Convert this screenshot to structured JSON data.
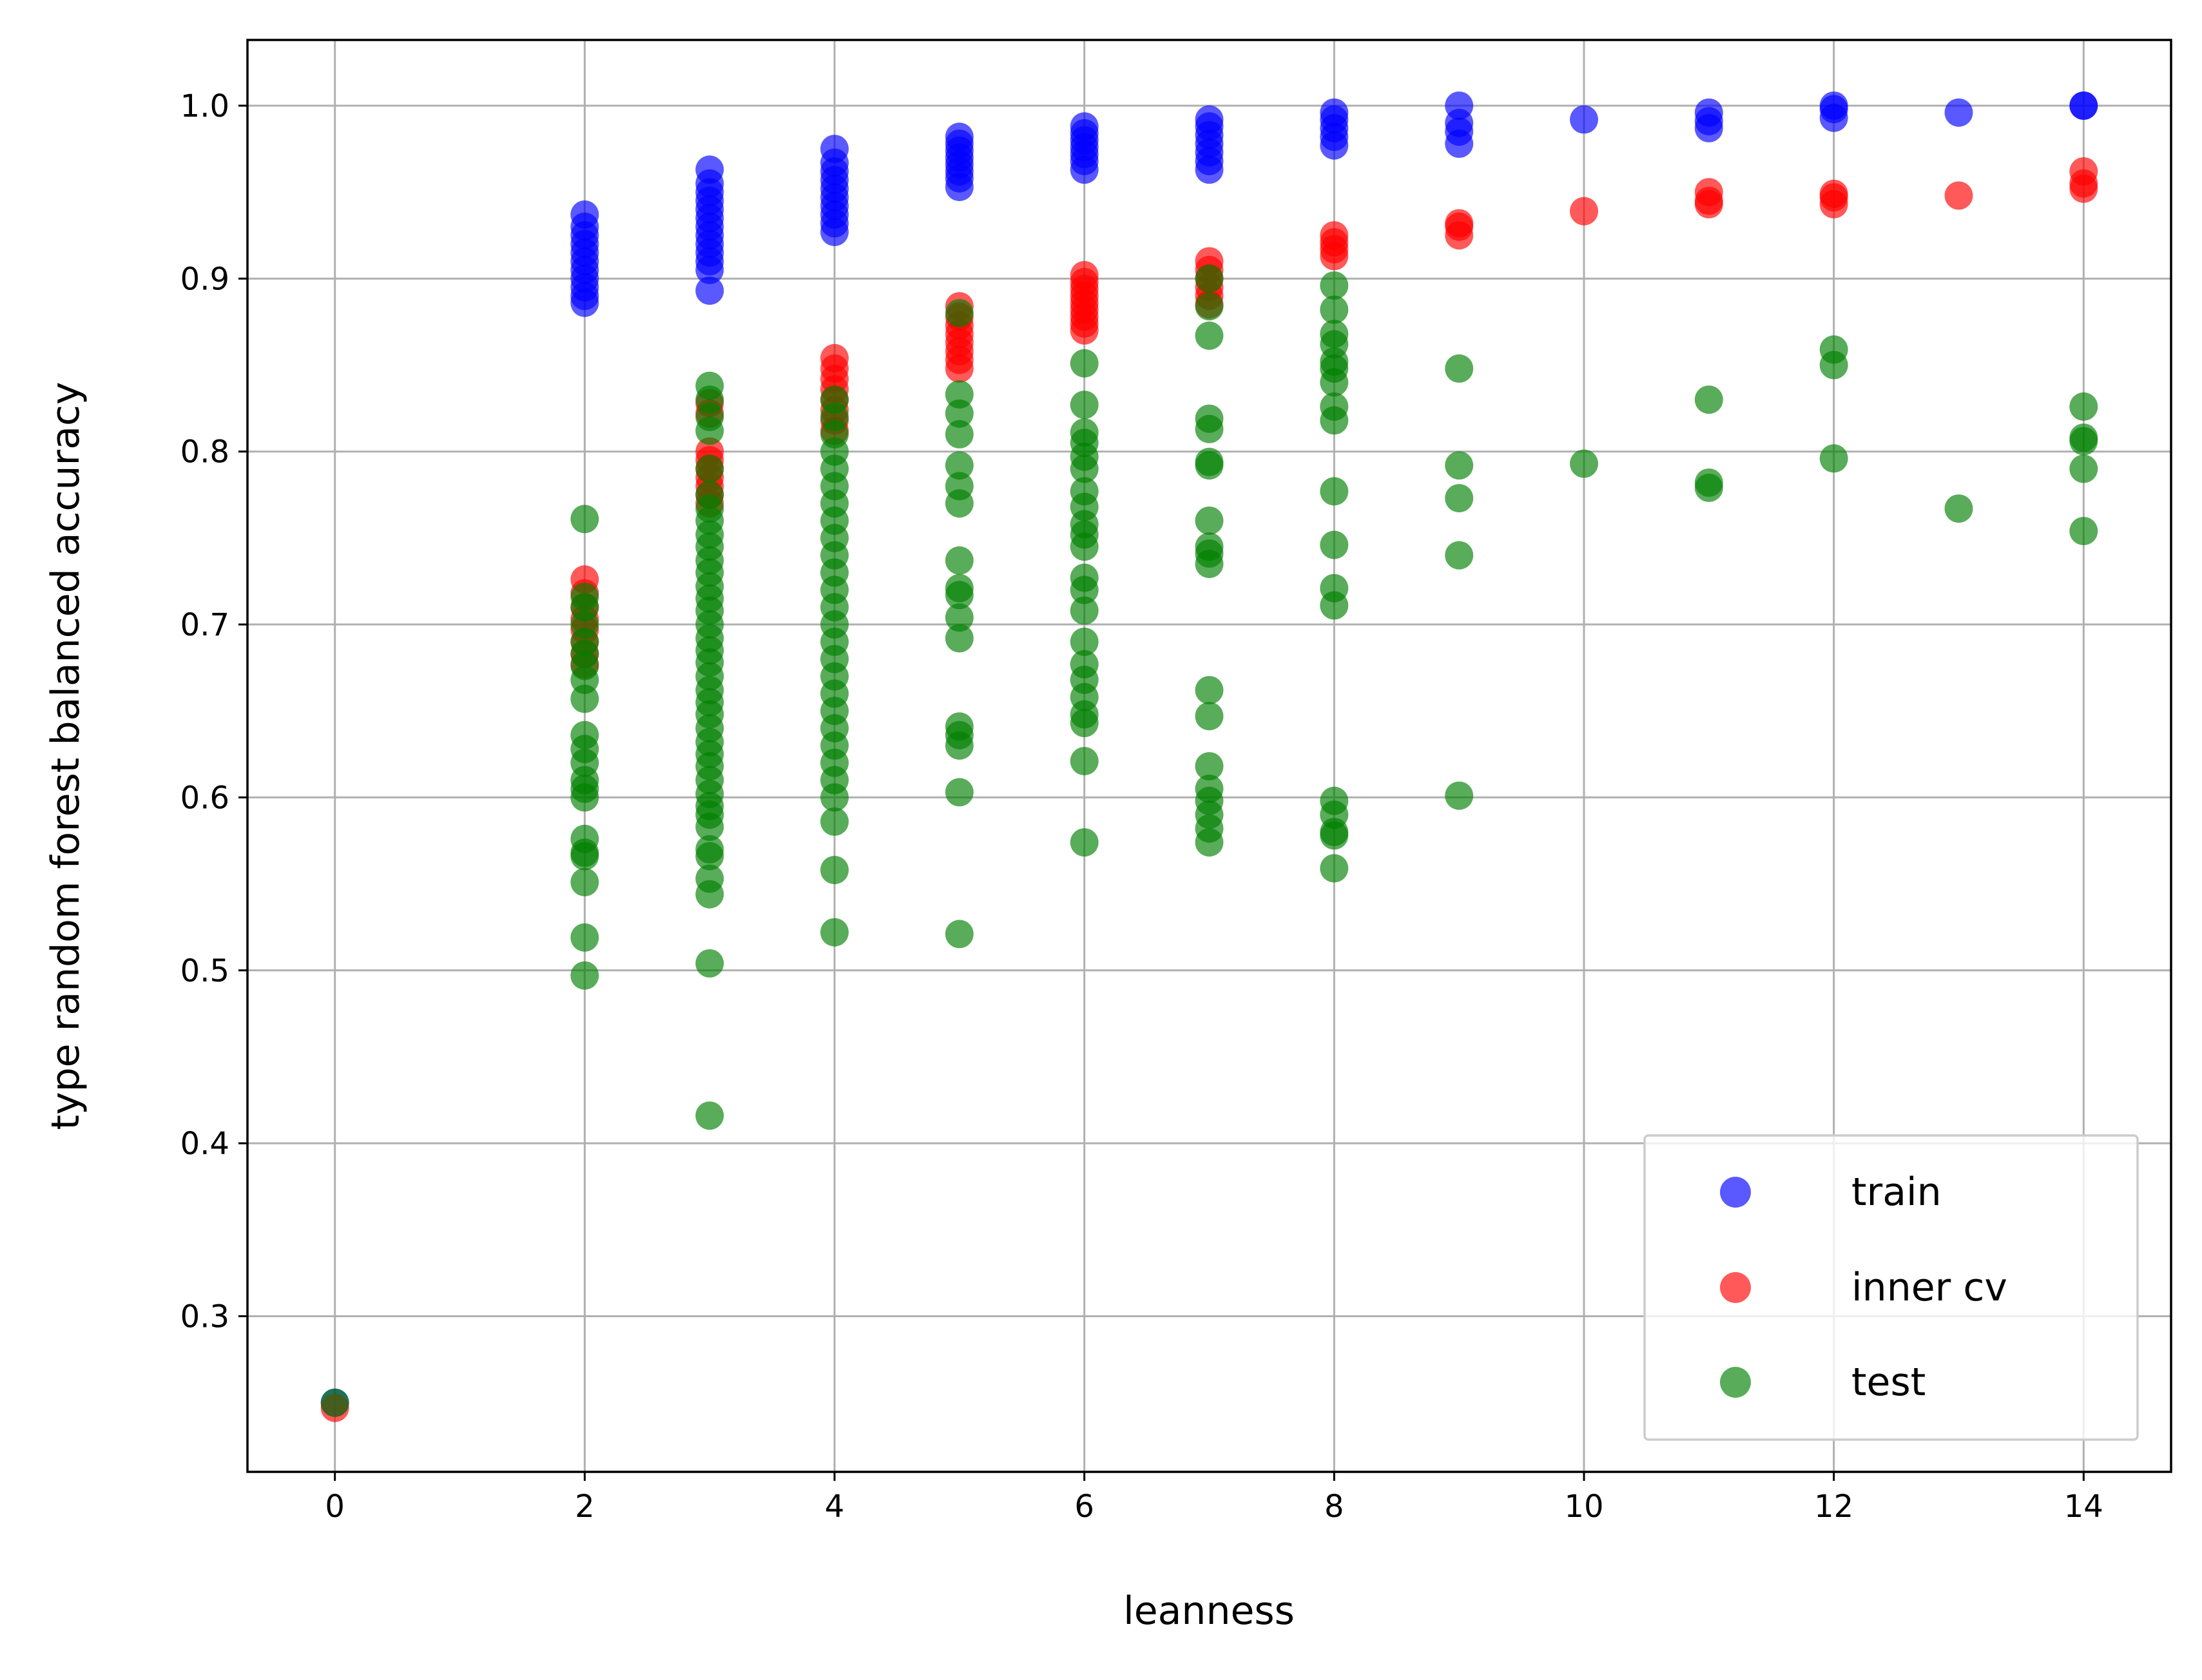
{
  "chart_data": {
    "type": "scatter",
    "xlabel": "leanness",
    "ylabel": "type random forest balanced accuracy",
    "xlim": [
      -0.7,
      14.7
    ],
    "ylim": [
      0.21,
      1.038
    ],
    "xticks": [
      0,
      2,
      4,
      6,
      8,
      10,
      12,
      14
    ],
    "xtick_labels": [
      "0",
      "2",
      "4",
      "6",
      "8",
      "10",
      "12",
      "14"
    ],
    "yticks": [
      0.3,
      0.4,
      0.5,
      0.6,
      0.7,
      0.8,
      0.9,
      1.0
    ],
    "ytick_labels": [
      "0.3",
      "0.4",
      "0.5",
      "0.6",
      "0.7",
      "0.8",
      "0.9",
      "1.0"
    ],
    "grid": true,
    "legend_position": "bottom-right",
    "series": [
      {
        "name": "train",
        "color": "#0000ff",
        "alpha": 0.65,
        "points": [
          [
            0,
            0.25
          ],
          [
            2,
            0.886
          ],
          [
            2,
            0.89
          ],
          [
            2,
            0.895
          ],
          [
            2,
            0.9
          ],
          [
            2,
            0.905
          ],
          [
            2,
            0.91
          ],
          [
            2,
            0.915
          ],
          [
            2,
            0.92
          ],
          [
            2,
            0.925
          ],
          [
            2,
            0.93
          ],
          [
            2,
            0.937
          ],
          [
            3,
            0.893
          ],
          [
            3,
            0.905
          ],
          [
            3,
            0.91
          ],
          [
            3,
            0.915
          ],
          [
            3,
            0.92
          ],
          [
            3,
            0.925
          ],
          [
            3,
            0.93
          ],
          [
            3,
            0.935
          ],
          [
            3,
            0.94
          ],
          [
            3,
            0.945
          ],
          [
            3,
            0.95
          ],
          [
            3,
            0.955
          ],
          [
            3,
            0.963
          ],
          [
            4,
            0.927
          ],
          [
            4,
            0.932
          ],
          [
            4,
            0.937
          ],
          [
            4,
            0.942
          ],
          [
            4,
            0.947
          ],
          [
            4,
            0.952
          ],
          [
            4,
            0.957
          ],
          [
            4,
            0.962
          ],
          [
            4,
            0.967
          ],
          [
            4,
            0.975
          ],
          [
            5,
            0.953
          ],
          [
            5,
            0.958
          ],
          [
            5,
            0.962
          ],
          [
            5,
            0.966
          ],
          [
            5,
            0.97
          ],
          [
            5,
            0.974
          ],
          [
            5,
            0.978
          ],
          [
            5,
            0.982
          ],
          [
            6,
            0.963
          ],
          [
            6,
            0.968
          ],
          [
            6,
            0.972
          ],
          [
            6,
            0.976
          ],
          [
            6,
            0.98
          ],
          [
            6,
            0.984
          ],
          [
            6,
            0.988
          ],
          [
            7,
            0.963
          ],
          [
            7,
            0.968
          ],
          [
            7,
            0.973
          ],
          [
            7,
            0.978
          ],
          [
            7,
            0.983
          ],
          [
            7,
            0.988
          ],
          [
            7,
            0.992
          ],
          [
            8,
            0.977
          ],
          [
            8,
            0.982
          ],
          [
            8,
            0.987
          ],
          [
            8,
            0.992
          ],
          [
            8,
            0.996
          ],
          [
            9,
            0.978
          ],
          [
            9,
            0.985
          ],
          [
            9,
            0.99
          ],
          [
            9,
            1.0
          ],
          [
            10,
            0.992
          ],
          [
            11,
            0.987
          ],
          [
            11,
            0.991
          ],
          [
            11,
            0.996
          ],
          [
            12,
            0.993
          ],
          [
            12,
            0.998
          ],
          [
            12,
            1.0
          ],
          [
            13,
            0.996
          ],
          [
            14,
            1.0
          ],
          [
            14,
            1.0
          ]
        ]
      },
      {
        "name": "inner cv",
        "color": "#ff0000",
        "alpha": 0.65,
        "points": [
          [
            0,
            0.247
          ],
          [
            2,
            0.677
          ],
          [
            2,
            0.683
          ],
          [
            2,
            0.69
          ],
          [
            2,
            0.697
          ],
          [
            2,
            0.703
          ],
          [
            2,
            0.71
          ],
          [
            2,
            0.718
          ],
          [
            2,
            0.726
          ],
          [
            3,
            0.77
          ],
          [
            3,
            0.775
          ],
          [
            3,
            0.78
          ],
          [
            3,
            0.785
          ],
          [
            3,
            0.79
          ],
          [
            3,
            0.795
          ],
          [
            3,
            0.8
          ],
          [
            3,
            0.822
          ],
          [
            3,
            0.828
          ],
          [
            4,
            0.812
          ],
          [
            4,
            0.818
          ],
          [
            4,
            0.824
          ],
          [
            4,
            0.83
          ],
          [
            4,
            0.836
          ],
          [
            4,
            0.842
          ],
          [
            4,
            0.848
          ],
          [
            4,
            0.854
          ],
          [
            5,
            0.848
          ],
          [
            5,
            0.853
          ],
          [
            5,
            0.858
          ],
          [
            5,
            0.863
          ],
          [
            5,
            0.868
          ],
          [
            5,
            0.873
          ],
          [
            5,
            0.878
          ],
          [
            5,
            0.884
          ],
          [
            6,
            0.87
          ],
          [
            6,
            0.874
          ],
          [
            6,
            0.878
          ],
          [
            6,
            0.882
          ],
          [
            6,
            0.886
          ],
          [
            6,
            0.89
          ],
          [
            6,
            0.894
          ],
          [
            6,
            0.898
          ],
          [
            6,
            0.902
          ],
          [
            7,
            0.885
          ],
          [
            7,
            0.89
          ],
          [
            7,
            0.895
          ],
          [
            7,
            0.9
          ],
          [
            7,
            0.905
          ],
          [
            7,
            0.91
          ],
          [
            8,
            0.913
          ],
          [
            8,
            0.917
          ],
          [
            8,
            0.921
          ],
          [
            8,
            0.925
          ],
          [
            9,
            0.925
          ],
          [
            9,
            0.93
          ],
          [
            9,
            0.932
          ],
          [
            10,
            0.939
          ],
          [
            11,
            0.943
          ],
          [
            11,
            0.945
          ],
          [
            11,
            0.95
          ],
          [
            12,
            0.943
          ],
          [
            12,
            0.947
          ],
          [
            12,
            0.949
          ],
          [
            13,
            0.948
          ],
          [
            14,
            0.952
          ],
          [
            14,
            0.955
          ],
          [
            14,
            0.962
          ]
        ]
      },
      {
        "name": "test",
        "color": "#008000",
        "alpha": 0.65,
        "points": [
          [
            0,
            0.25
          ],
          [
            2,
            0.497
          ],
          [
            2,
            0.519
          ],
          [
            2,
            0.551
          ],
          [
            2,
            0.566
          ],
          [
            2,
            0.568
          ],
          [
            2,
            0.576
          ],
          [
            2,
            0.6
          ],
          [
            2,
            0.605
          ],
          [
            2,
            0.61
          ],
          [
            2,
            0.62
          ],
          [
            2,
            0.628
          ],
          [
            2,
            0.636
          ],
          [
            2,
            0.657
          ],
          [
            2,
            0.668
          ],
          [
            2,
            0.676
          ],
          [
            2,
            0.683
          ],
          [
            2,
            0.69
          ],
          [
            2,
            0.7
          ],
          [
            2,
            0.71
          ],
          [
            2,
            0.716
          ],
          [
            2,
            0.761
          ],
          [
            3,
            0.416
          ],
          [
            3,
            0.504
          ],
          [
            3,
            0.544
          ],
          [
            3,
            0.553
          ],
          [
            3,
            0.566
          ],
          [
            3,
            0.57
          ],
          [
            3,
            0.583
          ],
          [
            3,
            0.59
          ],
          [
            3,
            0.595
          ],
          [
            3,
            0.602
          ],
          [
            3,
            0.61
          ],
          [
            3,
            0.618
          ],
          [
            3,
            0.625
          ],
          [
            3,
            0.632
          ],
          [
            3,
            0.64
          ],
          [
            3,
            0.648
          ],
          [
            3,
            0.655
          ],
          [
            3,
            0.662
          ],
          [
            3,
            0.67
          ],
          [
            3,
            0.678
          ],
          [
            3,
            0.685
          ],
          [
            3,
            0.692
          ],
          [
            3,
            0.7
          ],
          [
            3,
            0.708
          ],
          [
            3,
            0.715
          ],
          [
            3,
            0.722
          ],
          [
            3,
            0.73
          ],
          [
            3,
            0.737
          ],
          [
            3,
            0.745
          ],
          [
            3,
            0.752
          ],
          [
            3,
            0.76
          ],
          [
            3,
            0.767
          ],
          [
            3,
            0.775
          ],
          [
            3,
            0.79
          ],
          [
            3,
            0.812
          ],
          [
            3,
            0.82
          ],
          [
            3,
            0.83
          ],
          [
            3,
            0.838
          ],
          [
            4,
            0.522
          ],
          [
            4,
            0.558
          ],
          [
            4,
            0.586
          ],
          [
            4,
            0.6
          ],
          [
            4,
            0.61
          ],
          [
            4,
            0.62
          ],
          [
            4,
            0.63
          ],
          [
            4,
            0.64
          ],
          [
            4,
            0.65
          ],
          [
            4,
            0.66
          ],
          [
            4,
            0.67
          ],
          [
            4,
            0.68
          ],
          [
            4,
            0.69
          ],
          [
            4,
            0.7
          ],
          [
            4,
            0.71
          ],
          [
            4,
            0.72
          ],
          [
            4,
            0.73
          ],
          [
            4,
            0.74
          ],
          [
            4,
            0.75
          ],
          [
            4,
            0.76
          ],
          [
            4,
            0.77
          ],
          [
            4,
            0.78
          ],
          [
            4,
            0.79
          ],
          [
            4,
            0.8
          ],
          [
            4,
            0.81
          ],
          [
            4,
            0.82
          ],
          [
            4,
            0.83
          ],
          [
            5,
            0.521
          ],
          [
            5,
            0.603
          ],
          [
            5,
            0.63
          ],
          [
            5,
            0.636
          ],
          [
            5,
            0.641
          ],
          [
            5,
            0.692
          ],
          [
            5,
            0.704
          ],
          [
            5,
            0.717
          ],
          [
            5,
            0.721
          ],
          [
            5,
            0.737
          ],
          [
            5,
            0.77
          ],
          [
            5,
            0.78
          ],
          [
            5,
            0.792
          ],
          [
            5,
            0.81
          ],
          [
            5,
            0.822
          ],
          [
            5,
            0.833
          ],
          [
            5,
            0.88
          ],
          [
            6,
            0.574
          ],
          [
            6,
            0.621
          ],
          [
            6,
            0.643
          ],
          [
            6,
            0.648
          ],
          [
            6,
            0.658
          ],
          [
            6,
            0.668
          ],
          [
            6,
            0.677
          ],
          [
            6,
            0.69
          ],
          [
            6,
            0.708
          ],
          [
            6,
            0.72
          ],
          [
            6,
            0.727
          ],
          [
            6,
            0.745
          ],
          [
            6,
            0.752
          ],
          [
            6,
            0.758
          ],
          [
            6,
            0.768
          ],
          [
            6,
            0.777
          ],
          [
            6,
            0.79
          ],
          [
            6,
            0.797
          ],
          [
            6,
            0.805
          ],
          [
            6,
            0.811
          ],
          [
            6,
            0.827
          ],
          [
            6,
            0.851
          ],
          [
            7,
            0.574
          ],
          [
            7,
            0.582
          ],
          [
            7,
            0.59
          ],
          [
            7,
            0.598
          ],
          [
            7,
            0.605
          ],
          [
            7,
            0.618
          ],
          [
            7,
            0.647
          ],
          [
            7,
            0.662
          ],
          [
            7,
            0.735
          ],
          [
            7,
            0.741
          ],
          [
            7,
            0.745
          ],
          [
            7,
            0.76
          ],
          [
            7,
            0.792
          ],
          [
            7,
            0.794
          ],
          [
            7,
            0.813
          ],
          [
            7,
            0.819
          ],
          [
            7,
            0.867
          ],
          [
            7,
            0.884
          ],
          [
            7,
            0.9
          ],
          [
            8,
            0.559
          ],
          [
            8,
            0.578
          ],
          [
            8,
            0.58
          ],
          [
            8,
            0.59
          ],
          [
            8,
            0.598
          ],
          [
            8,
            0.711
          ],
          [
            8,
            0.721
          ],
          [
            8,
            0.746
          ],
          [
            8,
            0.777
          ],
          [
            8,
            0.818
          ],
          [
            8,
            0.826
          ],
          [
            8,
            0.84
          ],
          [
            8,
            0.848
          ],
          [
            8,
            0.852
          ],
          [
            8,
            0.862
          ],
          [
            8,
            0.868
          ],
          [
            8,
            0.882
          ],
          [
            8,
            0.896
          ],
          [
            9,
            0.601
          ],
          [
            9,
            0.74
          ],
          [
            9,
            0.773
          ],
          [
            9,
            0.792
          ],
          [
            9,
            0.848
          ],
          [
            10,
            0.793
          ],
          [
            11,
            0.779
          ],
          [
            11,
            0.782
          ],
          [
            11,
            0.83
          ],
          [
            12,
            0.796
          ],
          [
            12,
            0.85
          ],
          [
            12,
            0.859
          ],
          [
            13,
            0.767
          ],
          [
            14,
            0.754
          ],
          [
            14,
            0.79
          ],
          [
            14,
            0.806
          ],
          [
            14,
            0.808
          ],
          [
            14,
            0.826
          ]
        ]
      }
    ]
  }
}
